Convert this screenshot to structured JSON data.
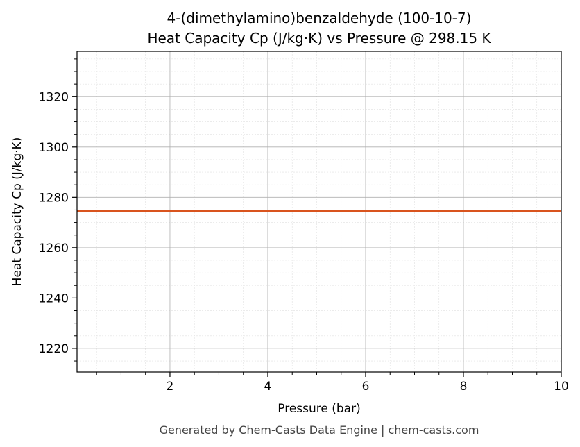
{
  "chart_data": {
    "type": "line",
    "title": "4-(dimethylamino)benzaldehyde (100-10-7)",
    "subtitle": "Heat Capacity Cp (J/kg·K) vs Pressure @ 298.15 K",
    "xlabel": "Pressure (bar)",
    "ylabel": "Heat Capacity Cp (J/kg·K)",
    "xlim": [
      0.1,
      10
    ],
    "ylim": [
      1210.6,
      1338
    ],
    "xticks": [
      2,
      4,
      6,
      8,
      10
    ],
    "yticks": [
      1220,
      1240,
      1260,
      1280,
      1300,
      1320
    ],
    "grid": true,
    "series": [
      {
        "x": [
          0.1,
          10
        ],
        "y": [
          1274.5,
          1274.5
        ],
        "color": "#d9541e"
      }
    ]
  },
  "footer": "Generated by Chem-Casts Data Engine | chem-casts.com"
}
